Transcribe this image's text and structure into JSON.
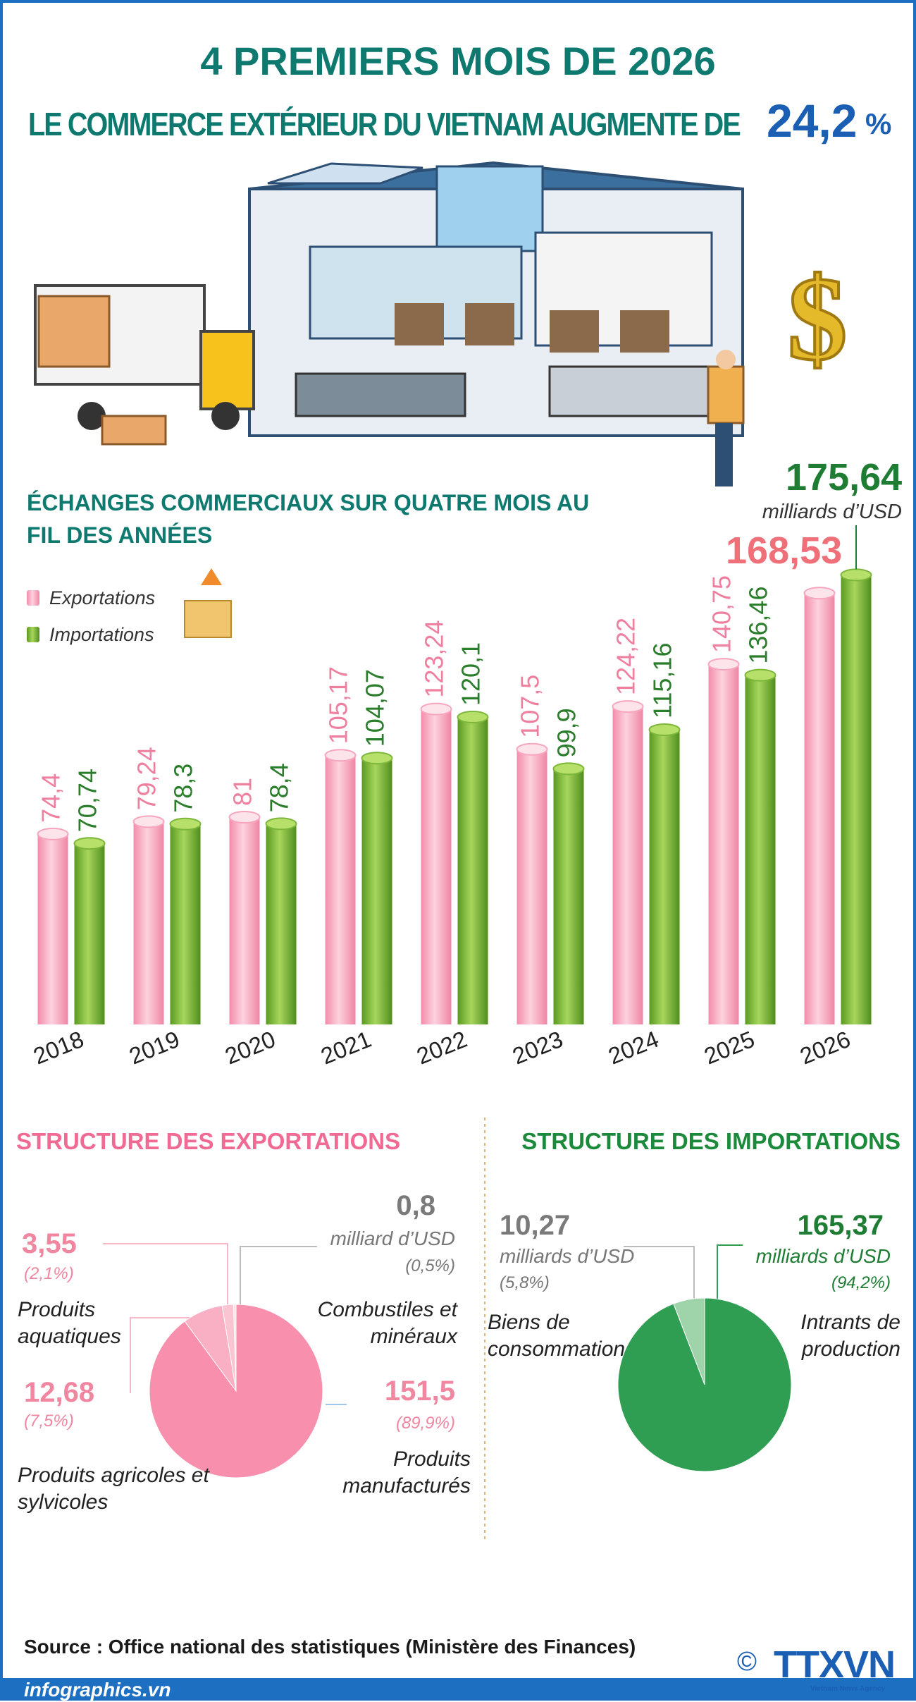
{
  "header": {
    "title": "4 PREMIERS MOIS DE 2026",
    "headline": "LE COMMERCE EXTÉRIEUR DU VIETNAM AUGMENTE DE",
    "growth": "24,2",
    "growth_unit": "%"
  },
  "chart_data": [
    {
      "type": "bar",
      "title": "ÉCHANGES COMMERCIAUX SUR QUATRE MOIS AU FIL DES ANNÉES",
      "unit": "milliards d’USD",
      "categories": [
        "2018",
        "2019",
        "2020",
        "2021",
        "2022",
        "2023",
        "2024",
        "2025",
        "2026"
      ],
      "series": [
        {
          "name": "Exportations",
          "color": "#f7a6be",
          "values": [
            74.4,
            79.24,
            81,
            105.17,
            123.24,
            107.5,
            124.22,
            140.75,
            168.53
          ],
          "value_labels": [
            "74,4",
            "79,24",
            "81",
            "105,17",
            "123,24",
            "107,5",
            "124,22",
            "140,75",
            "168,53"
          ]
        },
        {
          "name": "Importations",
          "color": "#7cb63a",
          "values": [
            70.74,
            78.3,
            78.4,
            104.07,
            120.1,
            99.9,
            115.16,
            136.46,
            175.64
          ],
          "value_labels": [
            "70,74",
            "78,3",
            "78,4",
            "104,07",
            "120,1",
            "99,9",
            "115,16",
            "136,46",
            "175,64"
          ]
        }
      ]
    },
    {
      "type": "pie",
      "title": "STRUCTURE DES EXPORTATIONS",
      "unit": "milliard d’USD",
      "categories": [
        "Combustiles et minéraux",
        "Produits aquatiques",
        "Produits agricoles et sylvicoles",
        "Produits manufacturés"
      ],
      "values": [
        0.8,
        3.55,
        12.68,
        151.5
      ],
      "value_labels": [
        "0,8",
        "3,55",
        "12,68",
        "151,5"
      ],
      "shares": [
        0.5,
        2.1,
        7.5,
        89.9
      ],
      "share_labels": [
        "(0,5%)",
        "(2,1%)",
        "(7,5%)",
        "(89,9%)"
      ],
      "colors": [
        "#fde0e8",
        "#fbc4d3",
        "#f9b0c4",
        "#f78fad"
      ]
    },
    {
      "type": "pie",
      "title": "STRUCTURE DES IMPORTATIONS",
      "unit": "milliards d’USD",
      "categories": [
        "Biens de consommation",
        "Intrants de production"
      ],
      "values": [
        10.27,
        165.37
      ],
      "value_labels": [
        "10,27",
        "165,37"
      ],
      "shares": [
        5.8,
        94.2
      ],
      "share_labels": [
        "(5,8%)",
        "(94,2%)"
      ],
      "colors": [
        "#9fd4ab",
        "#2f9e52"
      ]
    }
  ],
  "footer": {
    "source": "Source : Office national des statistiques (Ministère des Finances)",
    "website": "infographics.vn",
    "copyright": "©",
    "logo": "TTXVN",
    "agency": "Vietnam News Agency"
  }
}
